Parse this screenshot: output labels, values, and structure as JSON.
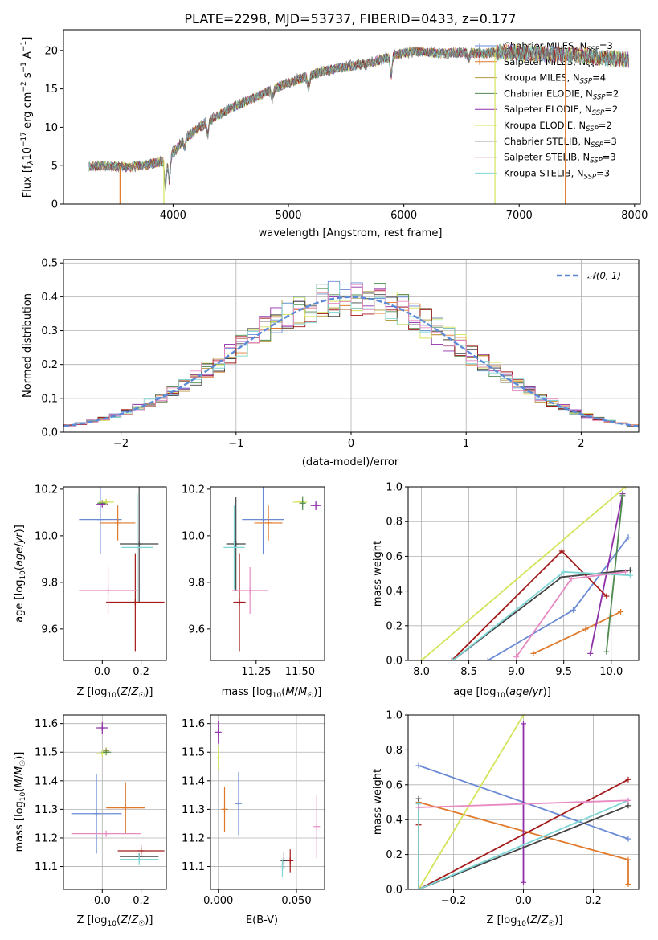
{
  "chart_data": [
    {
      "id": "spectrum",
      "type": "line",
      "title": "PLATE=2298, MJD=53737, FIBERID=0433, z=0.177",
      "xlabel": "wavelength [Angstrom, rest frame]",
      "ylabel": "Flux [f_λ10^−17 erg cm^−2 s^−1 A^−1]",
      "xlim": [
        3050,
        8050
      ],
      "ylim": [
        0,
        22.7
      ],
      "xticks": [
        4000,
        5000,
        6000,
        7000,
        8000
      ],
      "yticks": [
        0,
        5,
        10,
        15,
        20
      ],
      "legend_position": "right",
      "legend": [
        {
          "name": "Chabrier MILES, N",
          "sub": "SSP",
          "suffix": "=3",
          "color": "#6a8bd4"
        },
        {
          "name": "Salpeter MILES, N",
          "sub": "SSP",
          "suffix": "=3",
          "color": "#e07a2b"
        },
        {
          "name": "Kroupa MILES, N",
          "sub": "SSP",
          "suffix": "=4",
          "color": "#b59a3e"
        },
        {
          "name": "Chabrier ELODIE, N",
          "sub": "SSP",
          "suffix": "=2",
          "color": "#4f8a4f"
        },
        {
          "name": "Salpeter ELODIE, N",
          "sub": "SSP",
          "suffix": "=2",
          "color": "#8e2fa8"
        },
        {
          "name": "Kroupa ELODIE, N",
          "sub": "SSP",
          "suffix": "=2",
          "color": "#d4e35a"
        },
        {
          "name": "Chabrier STELIB, N",
          "sub": "SSP",
          "suffix": "=3",
          "color": "#444444"
        },
        {
          "name": "Salpeter STELIB, N",
          "sub": "SSP",
          "suffix": "=3",
          "color": "#a31a1a"
        },
        {
          "name": "Kroupa STELIB, N",
          "sub": "SSP",
          "suffix": "=3",
          "color": "#7fd6d6"
        }
      ],
      "continuum": {
        "x": [
          3270,
          3400,
          3600,
          3800,
          3950,
          4100,
          4300,
          4500,
          4700,
          4900,
          5100,
          5300,
          5500,
          5700,
          5900,
          6100,
          6300,
          6500,
          6700,
          6900,
          7100,
          7300,
          7500,
          7700,
          7950
        ],
        "y": [
          4.9,
          5.0,
          4.8,
          5.2,
          5.8,
          8.5,
          10.8,
          12.5,
          13.8,
          15.2,
          16.3,
          17.3,
          17.9,
          18.3,
          19.3,
          19.9,
          19.6,
          19.7,
          19.6,
          19.8,
          19.6,
          19.5,
          19.4,
          19.1,
          18.8
        ]
      },
      "drops": [
        {
          "x": 3540,
          "color": "#e07a2b"
        },
        {
          "x": 3920,
          "color": "#d4e35a"
        },
        {
          "x": 6790,
          "color": "#d4e35a"
        },
        {
          "x": 7400,
          "color": "#e07a2b"
        }
      ]
    },
    {
      "id": "residuals",
      "type": "histogram",
      "xlabel": "(data-model)/error",
      "ylabel": "Normed distribution",
      "xlim": [
        -2.5,
        2.5
      ],
      "ylim": [
        0,
        0.51
      ],
      "xticks": [
        -2,
        -1,
        0,
        1,
        2
      ],
      "yticks": [
        0.0,
        0.1,
        0.2,
        0.3,
        0.4,
        0.5
      ],
      "grid": true,
      "legend_position": "upper right",
      "reference": {
        "name": "𝒩(0, 1)",
        "color": "#5b8ad6"
      },
      "bin_width": 0.1
    },
    {
      "id": "age-vs-Z",
      "type": "scatter-errorbar",
      "xlabel": "Z [log10(Z/Z☉)]",
      "ylabel": "age  [log10(age/yr)]",
      "xlim": [
        -0.2,
        0.33
      ],
      "ylim": [
        9.465,
        10.21
      ],
      "xticks": [
        0.0,
        0.2
      ],
      "yticks": [
        9.6,
        9.8,
        10.0,
        10.2
      ],
      "points": [
        {
          "color": "#6a8bd4",
          "x": -0.01,
          "xerr": 0.11,
          "y": 10.07,
          "yerr": 0.15
        },
        {
          "color": "#e07a2b",
          "x": 0.08,
          "xerr": 0.09,
          "y": 10.055,
          "yerr": 0.075
        },
        {
          "color": "#b59a3e",
          "x": 0.02,
          "xerr": 0.0,
          "y": 10.145,
          "yerr": 0.0
        },
        {
          "color": "#4f8a4f",
          "x": 0.0,
          "xerr": 0.025,
          "y": 10.14,
          "yerr": 0.0
        },
        {
          "color": "#8e2fa8",
          "x": 0.0,
          "xerr": 0.03,
          "y": 10.135,
          "yerr": 0.0
        },
        {
          "color": "#d4e35a",
          "x": 0.02,
          "xerr": 0.04,
          "y": 10.145,
          "yerr": 0.0
        },
        {
          "color": "#444444",
          "x": 0.19,
          "xerr": 0.1,
          "y": 9.965,
          "yerr": 0.25
        },
        {
          "color": "#a31a1a",
          "x": 0.17,
          "xerr": 0.15,
          "y": 9.715,
          "yerr": 0.21
        },
        {
          "color": "#7fd6d6",
          "x": 0.18,
          "xerr": 0.08,
          "y": 9.95,
          "yerr": 0.23
        },
        {
          "color": "#e78ac3",
          "x": 0.03,
          "xerr": 0.15,
          "y": 9.765,
          "yerr": 0.1
        }
      ]
    },
    {
      "id": "age-vs-mass",
      "type": "scatter-errorbar",
      "xlabel": "mass [log10(M/M☉)]",
      "ylabel": "",
      "xlim": [
        10.99,
        11.64
      ],
      "ylim": [
        9.465,
        10.21
      ],
      "xticks": [
        11.25,
        11.5
      ],
      "yticks": [
        9.6,
        9.8,
        10.0,
        10.2
      ],
      "points": [
        {
          "color": "#6a8bd4",
          "x": 11.29,
          "xerr": 0.12,
          "y": 10.07,
          "yerr": 0.15
        },
        {
          "color": "#e07a2b",
          "x": 11.32,
          "xerr": 0.08,
          "y": 10.055,
          "yerr": 0.075
        },
        {
          "color": "#d4e35a",
          "x": 11.5,
          "xerr": 0.04,
          "y": 10.145,
          "yerr": 0.0
        },
        {
          "color": "#4f8a4f",
          "x": 11.515,
          "xerr": 0.0,
          "y": 10.14,
          "yerr": 0.03
        },
        {
          "color": "#8e2fa8",
          "x": 11.59,
          "xerr": 0.03,
          "y": 10.13,
          "yerr": 0.02
        },
        {
          "color": "#444444",
          "x": 11.135,
          "xerr": 0.055,
          "y": 9.965,
          "yerr": 0.2
        },
        {
          "color": "#7fd6d6",
          "x": 11.125,
          "xerr": 0.06,
          "y": 9.95,
          "yerr": 0.18
        },
        {
          "color": "#a31a1a",
          "x": 11.155,
          "xerr": 0.035,
          "y": 9.715,
          "yerr": 0.21
        },
        {
          "color": "#e78ac3",
          "x": 11.215,
          "xerr": 0.1,
          "y": 9.765,
          "yerr": 0.1
        }
      ]
    },
    {
      "id": "weight-vs-age",
      "type": "line",
      "xlabel": "age  [log10(age/yr)]",
      "ylabel": "mass weight",
      "xlim": [
        7.86,
        10.29
      ],
      "ylim": [
        0,
        1.0
      ],
      "xticks": [
        8.0,
        8.5,
        9.0,
        9.5,
        10.0
      ],
      "yticks": [
        0.0,
        0.2,
        0.4,
        0.6,
        0.8,
        1.0
      ],
      "grid": true,
      "series": [
        {
          "color": "#6a8bd4",
          "x": [
            8.7,
            9.6,
            10.18
          ],
          "y": [
            0.0,
            0.29,
            0.71
          ]
        },
        {
          "color": "#e07a2b",
          "x": [
            9.18,
            9.73,
            10.1
          ],
          "y": [
            0.04,
            0.18,
            0.28
          ]
        },
        {
          "color": "#d4e35a",
          "x": [
            8.0,
            10.15
          ],
          "y": [
            0.0,
            1.0
          ]
        },
        {
          "color": "#8e2fa8",
          "x": [
            9.78,
            10.12
          ],
          "y": [
            0.04,
            0.96
          ]
        },
        {
          "color": "#4f8a4f",
          "x": [
            9.95,
            10.12
          ],
          "y": [
            0.05,
            0.95
          ]
        },
        {
          "color": "#444444",
          "x": [
            8.33,
            9.48,
            10.2
          ],
          "y": [
            0.0,
            0.48,
            0.52
          ]
        },
        {
          "color": "#a31a1a",
          "x": [
            8.32,
            9.48,
            9.95
          ],
          "y": [
            0.0,
            0.63,
            0.37
          ]
        },
        {
          "color": "#7fd6d6",
          "x": [
            8.33,
            9.5,
            10.2
          ],
          "y": [
            0.0,
            0.51,
            0.49
          ]
        },
        {
          "color": "#e78ac3",
          "x": [
            9.0,
            9.58,
            10.15
          ],
          "y": [
            0.02,
            0.47,
            0.51
          ]
        }
      ]
    },
    {
      "id": "mass-vs-Z",
      "type": "scatter-errorbar",
      "xlabel": "Z [log10(Z/Z☉)]",
      "ylabel": "mass [log10(M/M☉)]",
      "xlim": [
        -0.2,
        0.33
      ],
      "ylim": [
        11.02,
        11.63
      ],
      "xticks": [
        0.0,
        0.2
      ],
      "yticks": [
        11.1,
        11.2,
        11.3,
        11.4,
        11.5,
        11.6
      ],
      "points": [
        {
          "color": "#6a8bd4",
          "x": -0.03,
          "xerr": 0.13,
          "y": 11.285,
          "yerr": 0.14
        },
        {
          "color": "#e07a2b",
          "x": 0.12,
          "xerr": 0.1,
          "y": 11.305,
          "yerr": 0.09
        },
        {
          "color": "#b59a3e",
          "x": 0.02,
          "xerr": 0.0,
          "y": 11.505,
          "yerr": 0.0
        },
        {
          "color": "#4f8a4f",
          "x": 0.02,
          "xerr": 0.025,
          "y": 11.5,
          "yerr": 0.0
        },
        {
          "color": "#d4e35a",
          "x": 0.0,
          "xerr": 0.03,
          "y": 11.495,
          "yerr": 0.0
        },
        {
          "color": "#8e2fa8",
          "x": 0.0,
          "xerr": 0.03,
          "y": 11.585,
          "yerr": 0.02
        },
        {
          "color": "#444444",
          "x": 0.19,
          "xerr": 0.1,
          "y": 11.135,
          "yerr": 0.01
        },
        {
          "color": "#a31a1a",
          "x": 0.2,
          "xerr": 0.12,
          "y": 11.155,
          "yerr": 0.02
        },
        {
          "color": "#7fd6d6",
          "x": 0.19,
          "xerr": 0.1,
          "y": 11.125,
          "yerr": 0.02
        },
        {
          "color": "#e78ac3",
          "x": 0.02,
          "xerr": 0.18,
          "y": 11.215,
          "yerr": 0.0
        }
      ]
    },
    {
      "id": "mass-vs-ebv",
      "type": "scatter-errorbar",
      "xlabel": "E(B-V)",
      "ylabel": "",
      "xlim": [
        -0.005,
        0.068
      ],
      "ylim": [
        11.02,
        11.63
      ],
      "xticks": [
        0.0,
        0.05
      ],
      "xtick_labels": [
        "0.000",
        "0.050"
      ],
      "yticks": [
        11.1,
        11.2,
        11.3,
        11.4,
        11.5,
        11.6
      ],
      "points": [
        {
          "color": "#8e2fa8",
          "x": 0.0,
          "xerr": 0.0,
          "y": 11.57,
          "yerr": 0.04
        },
        {
          "color": "#d4e35a",
          "x": 0.0,
          "xerr": 0.0,
          "y": 11.48,
          "yerr": 0.04
        },
        {
          "color": "#e07a2b",
          "x": 0.004,
          "xerr": 0.0,
          "y": 11.3,
          "yerr": 0.08
        },
        {
          "color": "#6a8bd4",
          "x": 0.013,
          "xerr": 0.0,
          "y": 11.32,
          "yerr": 0.11
        },
        {
          "color": "#444444",
          "x": 0.042,
          "xerr": 0.0,
          "y": 11.12,
          "yerr": 0.03
        },
        {
          "color": "#7fd6d6",
          "x": 0.041,
          "xerr": 0.0,
          "y": 11.095,
          "yerr": 0.03
        },
        {
          "color": "#a31a1a",
          "x": 0.046,
          "xerr": 0.0,
          "y": 11.12,
          "yerr": 0.04
        },
        {
          "color": "#e78ac3",
          "x": 0.063,
          "xerr": 0.0,
          "y": 11.24,
          "yerr": 0.11
        }
      ]
    },
    {
      "id": "weight-vs-Z",
      "type": "line",
      "xlabel": "Z [log10(Z/Z☉)]",
      "ylabel": "mass weight",
      "xlim": [
        -0.33,
        0.33
      ],
      "ylim": [
        0,
        1.0
      ],
      "xticks": [
        -0.2,
        0.0,
        0.2
      ],
      "yticks": [
        0.0,
        0.2,
        0.4,
        0.6,
        0.8,
        1.0
      ],
      "grid": true,
      "series": [
        {
          "color": "#6a8bd4",
          "x": [
            -0.3,
            0.3
          ],
          "y": [
            0.71,
            0.29
          ]
        },
        {
          "color": "#e07a2b",
          "x": [
            -0.3,
            0.3,
            0.3
          ],
          "y": [
            0.5,
            0.17,
            0.03
          ]
        },
        {
          "color": "#d4e35a",
          "x": [
            -0.3,
            0.0
          ],
          "y": [
            0.0,
            1.0
          ]
        },
        {
          "color": "#8e2fa8",
          "x": [
            0.0,
            0.0
          ],
          "y": [
            0.04,
            0.95
          ]
        },
        {
          "color": "#444444",
          "x": [
            -0.3,
            -0.3,
            0.3
          ],
          "y": [
            0.52,
            0.0,
            0.48
          ]
        },
        {
          "color": "#a31a1a",
          "x": [
            -0.3,
            -0.3,
            0.3
          ],
          "y": [
            0.37,
            0.0,
            0.63
          ]
        },
        {
          "color": "#7fd6d6",
          "x": [
            -0.3,
            -0.3,
            0.3
          ],
          "y": [
            0.49,
            0.0,
            0.51
          ]
        },
        {
          "color": "#e78ac3",
          "x": [
            -0.3,
            0.3
          ],
          "y": [
            0.47,
            0.51
          ]
        }
      ]
    }
  ]
}
